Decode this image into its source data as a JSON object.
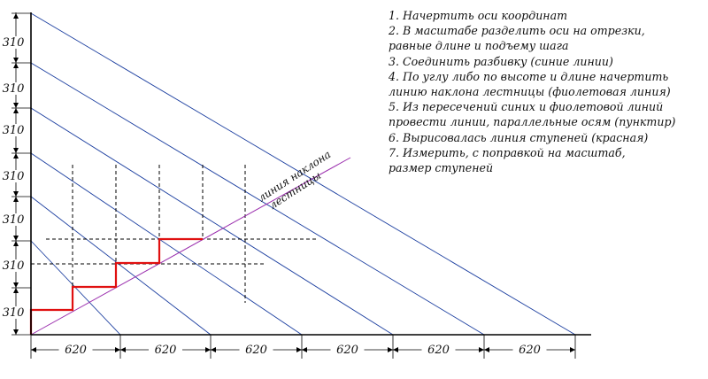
{
  "diagram": {
    "rise_label": "310",
    "run_label": "620",
    "slope_line_label": [
      "линия наклона",
      "лестницы"
    ],
    "colors": {
      "axis": "#000000",
      "division": "#1c3fa0",
      "slope_line": "#9b2fae",
      "steps": "#e01010",
      "dashed": "#000000"
    }
  },
  "instructions": [
    "1. Начертить оси координат",
    "2. В масштабе разделить оси на отрезки,\nравные длине и подъему шага",
    "3. Соединить разбивку (синие линии)",
    "4. По углу либо по высоте и длине начертить\nлинию наклона лестницы (фиолетовая линия)",
    "5. Из пересечений синих и фиолетовой линий\nпровести линии, параллельные осям (пунктир)",
    "6. Вырисовалась линия ступеней (красная)",
    "7. Измерить, с поправкой на масштаб,\nразмер ступеней"
  ]
}
